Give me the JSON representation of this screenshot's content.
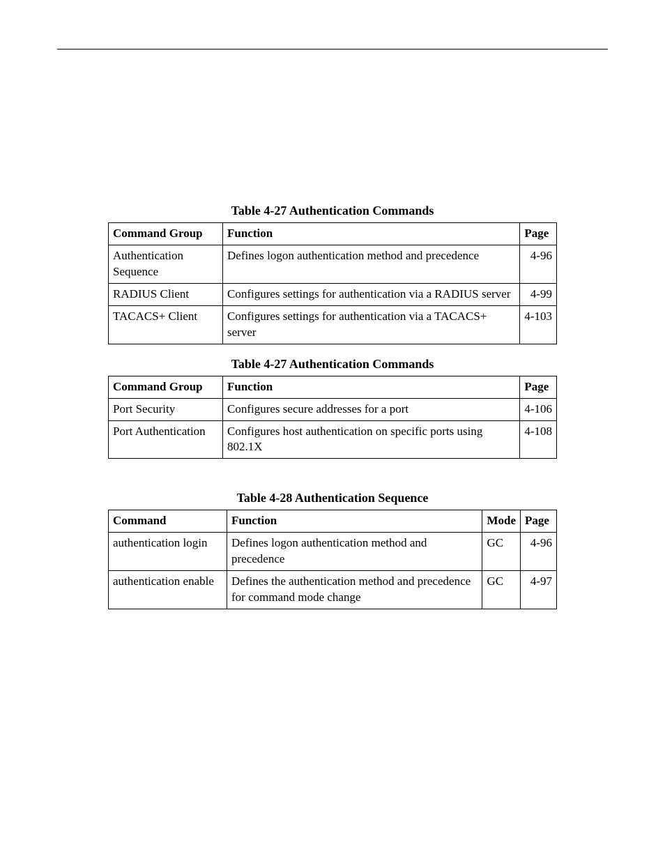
{
  "tables": [
    {
      "caption": "Table 4-27  Authentication Commands",
      "columns": [
        "Command Group",
        "Function",
        "Page"
      ],
      "col_classes": [
        "col-group",
        "col-function",
        "col-page"
      ],
      "col_widths": [
        "164px",
        "auto",
        "52px"
      ],
      "rows": [
        [
          "Authentication Sequence",
          "Defines logon authentication method and precedence",
          "4-96"
        ],
        [
          "RADIUS Client",
          "Configures settings for authentication via a RADIUS server",
          "4-99"
        ],
        [
          "TACACS+ Client",
          "Configures settings for authentication via a TACACS+ server",
          "4-103"
        ]
      ]
    },
    {
      "caption": "Table 4-27  Authentication Commands",
      "columns": [
        "Command Group",
        "Function",
        "Page"
      ],
      "col_classes": [
        "col-group",
        "col-function",
        "col-page"
      ],
      "col_widths": [
        "164px",
        "auto",
        "52px"
      ],
      "rows": [
        [
          "Port Security",
          "Configures secure addresses for a port",
          "4-106"
        ],
        [
          "Port Authentication",
          "Configures host authentication on specific ports using 802.1X",
          "4-108"
        ]
      ]
    },
    {
      "caption": "Table 4-28  Authentication Sequence",
      "columns": [
        "Command",
        "Function",
        "Mode",
        "Page"
      ],
      "col_classes": [
        "col-command",
        "col-function",
        "col-mode",
        "col-page"
      ],
      "col_widths": [
        "170px",
        "auto",
        "52px",
        "52px"
      ],
      "rows": [
        [
          "authentication login",
          "Defines logon authentication method and precedence",
          "GC",
          "4-96"
        ],
        [
          "authentication enable",
          "Defines the authentication method and precedence for  command mode change",
          "GC",
          "4-97"
        ]
      ]
    }
  ]
}
